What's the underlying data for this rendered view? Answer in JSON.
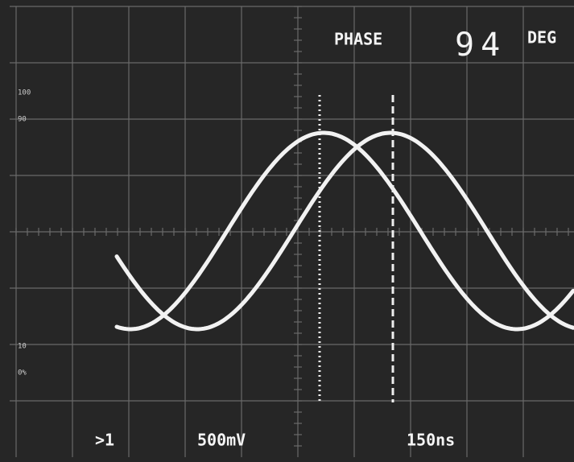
{
  "display": {
    "phase_label": "PHASE",
    "phase_value": "94",
    "phase_unit": "DEG"
  },
  "scale_labels": [
    "100",
    "90",
    "10",
    "0%"
  ],
  "footer": {
    "probe": ">1",
    "volts_per_div": "500mV",
    "time_per_div": "150ns"
  }
}
